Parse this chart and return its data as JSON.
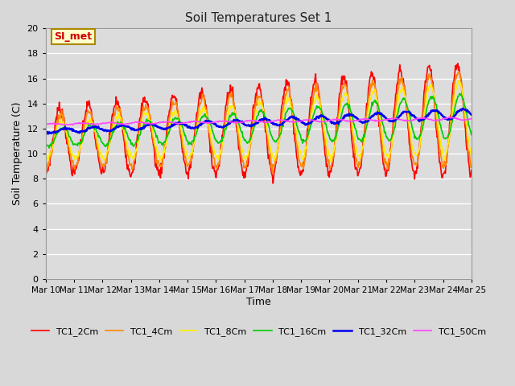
{
  "title": "Soil Temperatures Set 1",
  "xlabel": "Time",
  "ylabel": "Soil Temperature (C)",
  "ylim": [
    0,
    20
  ],
  "yticks": [
    0,
    2,
    4,
    6,
    8,
    10,
    12,
    14,
    16,
    18,
    20
  ],
  "fig_bg_color": "#d8d8d8",
  "plot_bg_color": "#dcdcdc",
  "grid_color": "#ffffff",
  "annotation_text": "SI_met",
  "annotation_color": "#cc0000",
  "annotation_bg": "#ffffcc",
  "annotation_border": "#aa8800",
  "series_colors": {
    "TC1_2Cm": "#ff0000",
    "TC1_4Cm": "#ff8800",
    "TC1_8Cm": "#ffee00",
    "TC1_16Cm": "#00cc00",
    "TC1_32Cm": "#0000ee",
    "TC1_50Cm": "#ff44ff"
  },
  "series_linewidths": {
    "TC1_2Cm": 1.2,
    "TC1_4Cm": 1.2,
    "TC1_8Cm": 1.2,
    "TC1_16Cm": 1.2,
    "TC1_32Cm": 1.8,
    "TC1_50Cm": 1.2
  },
  "x_tick_days": [
    10,
    11,
    12,
    13,
    14,
    15,
    16,
    17,
    18,
    19,
    20,
    21,
    22,
    23,
    24,
    25
  ],
  "legend_entries": [
    "TC1_2Cm",
    "TC1_4Cm",
    "TC1_8Cm",
    "TC1_16Cm",
    "TC1_32Cm",
    "TC1_50Cm"
  ]
}
